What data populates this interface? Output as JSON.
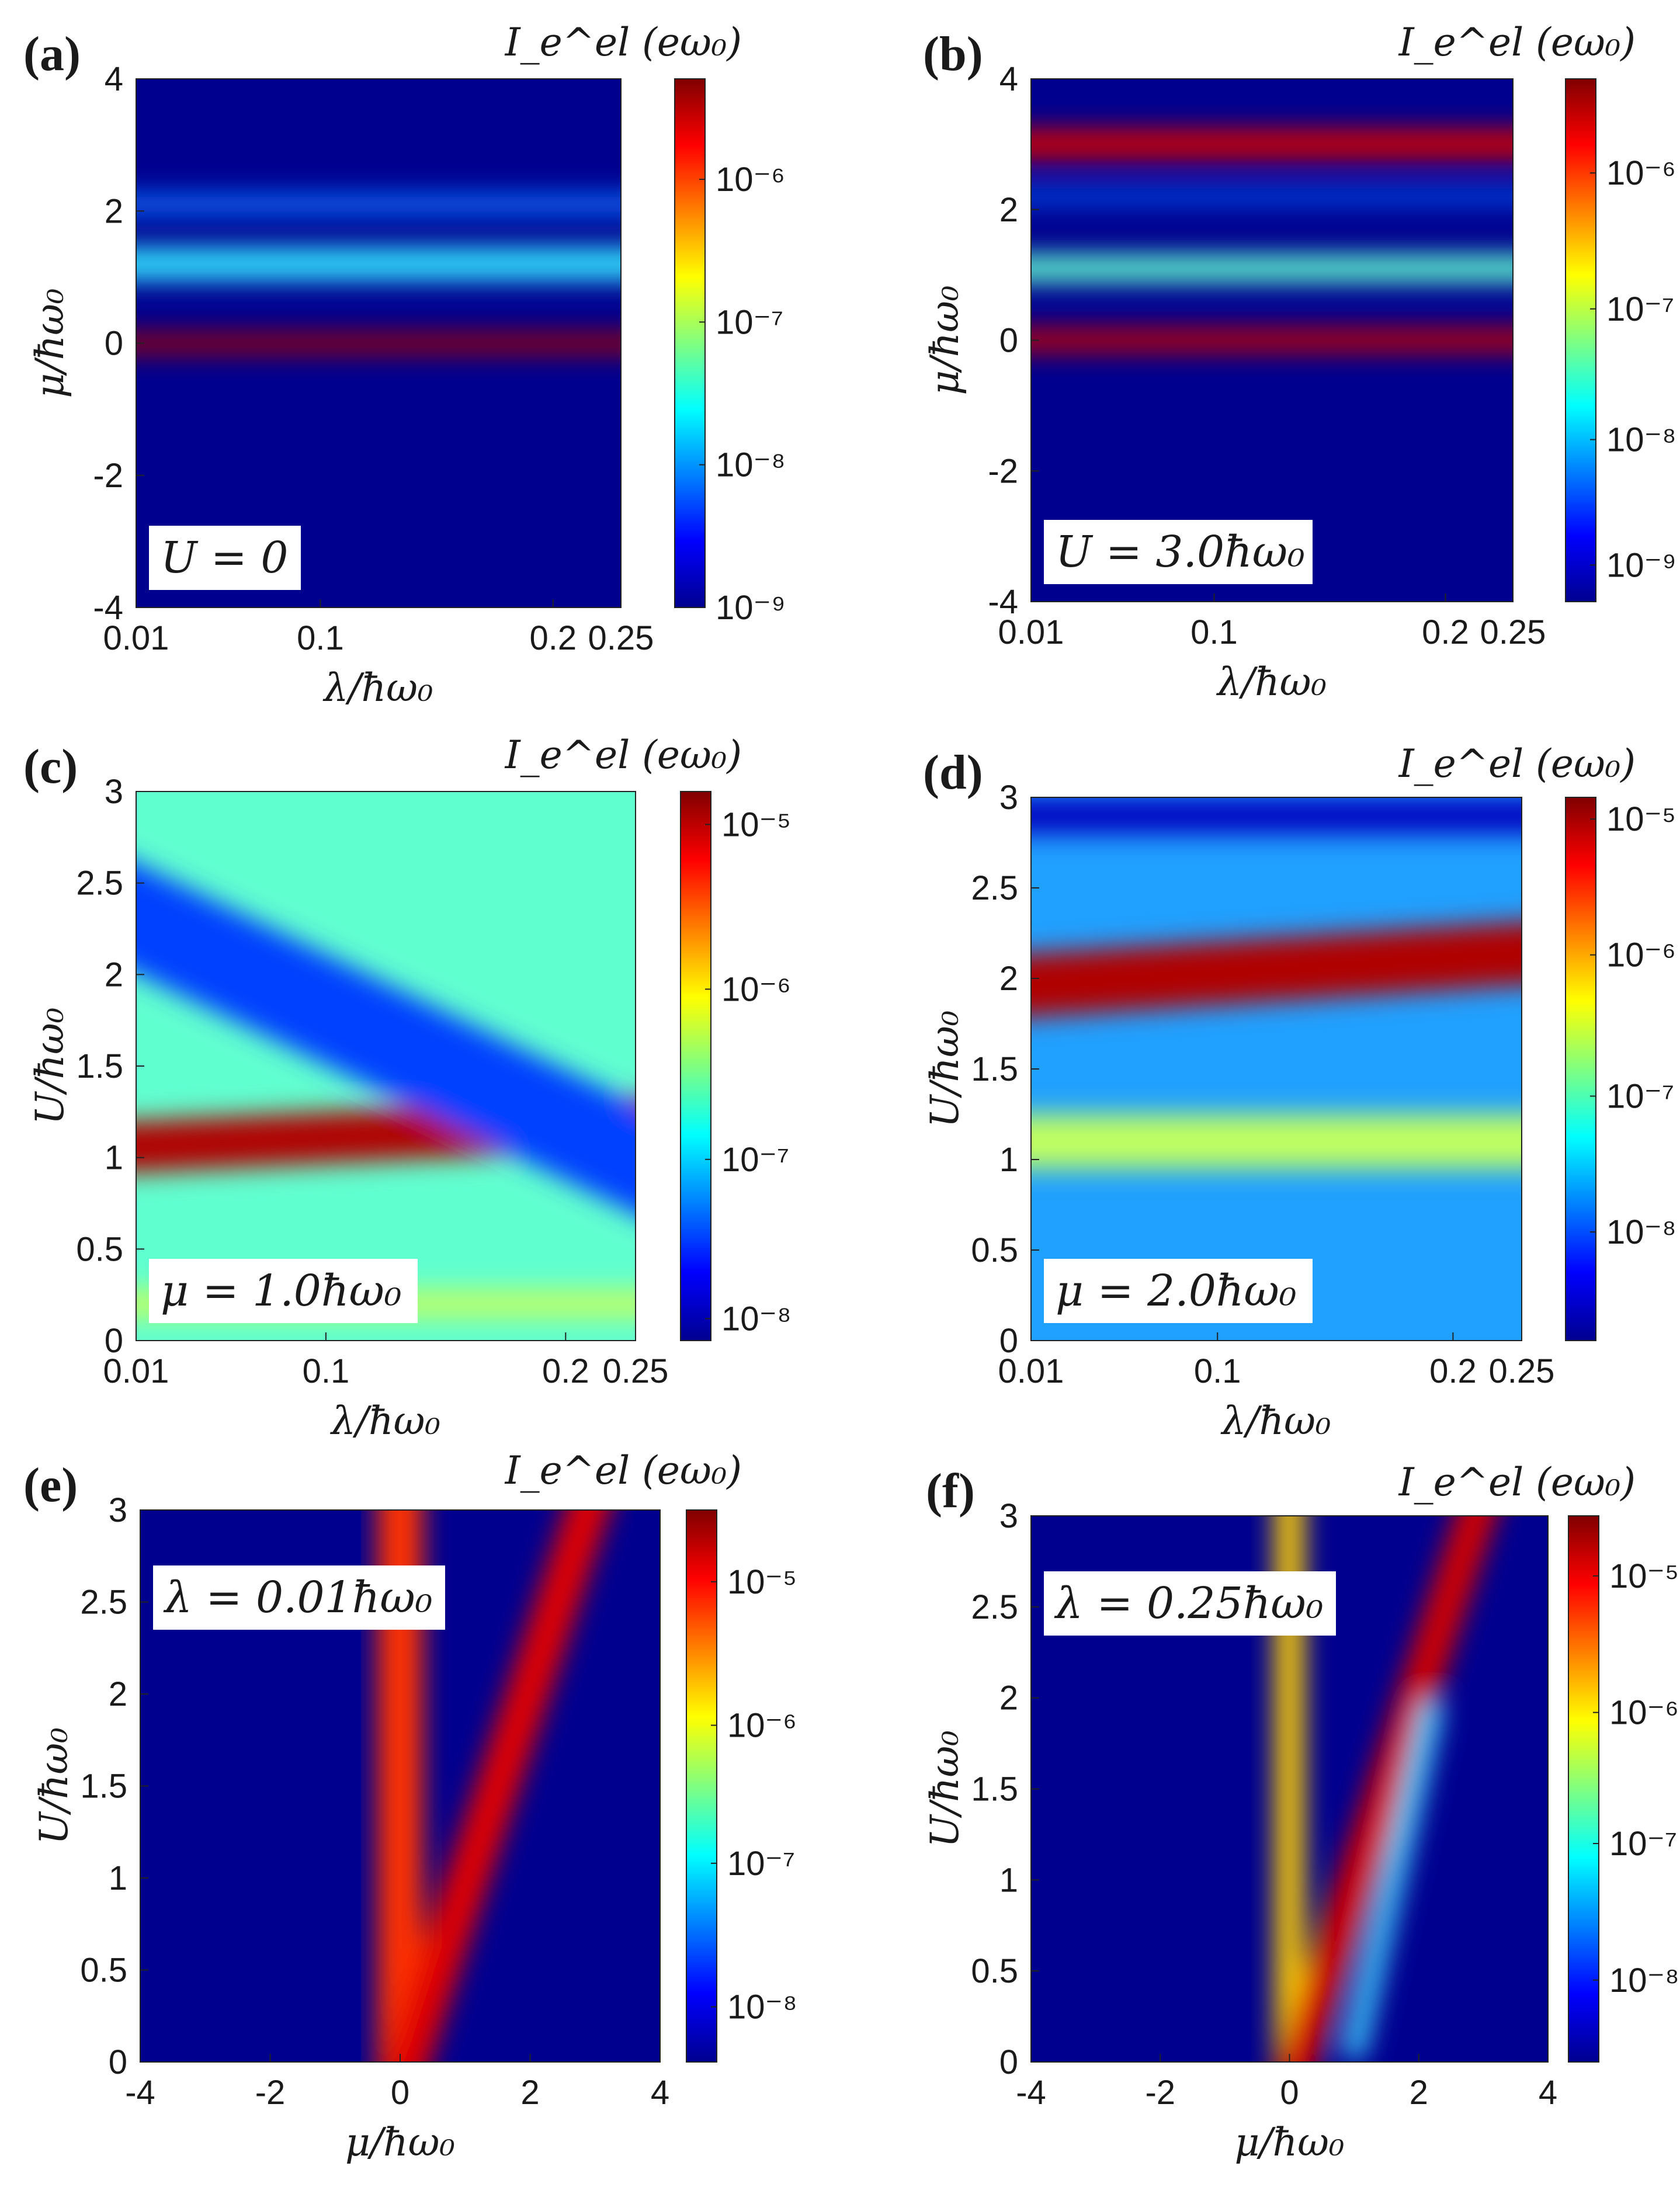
{
  "figure": {
    "colorbar_gradient": [
      "#00008f",
      "#0000ff",
      "#0080ff",
      "#00ffff",
      "#80ff80",
      "#ffff00",
      "#ff8000",
      "#ff0000",
      "#800000"
    ]
  },
  "chart_data": [
    {
      "type": "heatmap",
      "panel": "(a)",
      "colorbar_label": "I_e^el (eω₀)",
      "colorbar_ticks": [
        "10⁻⁶",
        "10⁻⁷",
        "10⁻⁸",
        "10⁻⁹"
      ],
      "colorbar_tick_positions": [
        0.81,
        0.54,
        0.27,
        0.0
      ],
      "xlabel": "λ/ħω₀",
      "ylabel": "μ/ħω₀",
      "xticks": [
        "0.01",
        "0.1",
        "0.2",
        "0.25"
      ],
      "xtick_positions": [
        0.0,
        0.38,
        0.86,
        1.0
      ],
      "yticks": [
        "4",
        "2",
        "0",
        "-2",
        "-4"
      ],
      "ytick_positions": [
        1.0,
        0.75,
        0.5,
        0.25,
        0.0
      ],
      "xlim": [
        0.01,
        0.25
      ],
      "ylim": [
        -4,
        4
      ],
      "annotation": "U = 0",
      "annotation_pos": "bottom-left",
      "dominant_color": "#00008f",
      "bands": [
        {
          "center": 0.0,
          "width": 0.3,
          "color": "#a00000",
          "slope": 0.0
        },
        {
          "center": 1.2,
          "width": 0.5,
          "color": "#30e0ff",
          "slope": 0.0
        },
        {
          "center": 2.1,
          "width": 0.3,
          "color": "#1070ff",
          "slope": 0.0
        }
      ]
    },
    {
      "type": "heatmap",
      "panel": "(b)",
      "colorbar_label": "I_e^el (eω₀)",
      "colorbar_ticks": [
        "10⁻⁶",
        "10⁻⁷",
        "10⁻⁸",
        "10⁻⁹"
      ],
      "colorbar_tick_positions": [
        0.82,
        0.56,
        0.31,
        0.07
      ],
      "xlabel": "λ/ħω₀",
      "ylabel": "μ/ħω₀",
      "xticks": [
        "0.01",
        "0.1",
        "0.2",
        "0.25"
      ],
      "xtick_positions": [
        0.0,
        0.38,
        0.86,
        1.0
      ],
      "yticks": [
        "4",
        "2",
        "0",
        "-2",
        "-4"
      ],
      "ytick_positions": [
        1.0,
        0.75,
        0.5,
        0.25,
        0.0
      ],
      "xlim": [
        0.01,
        0.25
      ],
      "ylim": [
        -4,
        4
      ],
      "annotation": "U = 3.0ħω₀",
      "annotation_pos": "bottom-left",
      "dominant_color": "#00008f",
      "bands": [
        {
          "center": 3.0,
          "width": 0.45,
          "color": "#d00000",
          "slope": 0.0
        },
        {
          "center": 1.1,
          "width": 0.4,
          "color": "#60ffd0",
          "slope": 0.0
        },
        {
          "center": 0.0,
          "width": 0.35,
          "color": "#c00000",
          "slope": 0.0
        },
        {
          "center": 2.2,
          "width": 0.2,
          "color": "#0060ff",
          "slope": 0.0
        }
      ]
    },
    {
      "type": "heatmap",
      "panel": "(c)",
      "colorbar_label": "I_e^el (eω₀)",
      "colorbar_ticks": [
        "10⁻⁵",
        "10⁻⁶",
        "10⁻⁷",
        "10⁻⁸"
      ],
      "colorbar_tick_positions": [
        0.94,
        0.64,
        0.33,
        0.04
      ],
      "xlabel": "λ/ħω₀",
      "ylabel": "U/ħω₀",
      "xticks": [
        "0.01",
        "0.1",
        "0.2",
        "0.25"
      ],
      "xtick_positions": [
        0.0,
        0.38,
        0.86,
        1.0
      ],
      "yticks": [
        "3",
        "2.5",
        "2",
        "1.5",
        "1",
        "0.5",
        "0"
      ],
      "ytick_positions": [
        1.0,
        0.8333,
        0.6667,
        0.5,
        0.3333,
        0.1667,
        0.0
      ],
      "xlim": [
        0.01,
        0.25
      ],
      "ylim": [
        0,
        3
      ],
      "annotation": "μ = 1.0ħω₀",
      "annotation_pos": "bottom-left",
      "dominant_color": "#60ffd0",
      "bands": [
        {
          "center": 1.05,
          "width": 0.28,
          "color": "#b00000",
          "slope": 0.15
        },
        {
          "center": 2.4,
          "width": 0.6,
          "color": "#0040ff",
          "slope": -1.5
        },
        {
          "center": 0.2,
          "width": 0.15,
          "color": "#c0ff60",
          "slope": 0.0
        }
      ]
    },
    {
      "type": "heatmap",
      "panel": "(d)",
      "colorbar_label": "I_e^el (eω₀)",
      "colorbar_ticks": [
        "10⁻⁵",
        "10⁻⁶",
        "10⁻⁷",
        "10⁻⁸"
      ],
      "colorbar_tick_positions": [
        0.96,
        0.71,
        0.45,
        0.2
      ],
      "xlabel": "λ/ħω₀",
      "ylabel": "U/ħω₀",
      "xticks": [
        "0.01",
        "0.1",
        "0.2",
        "0.25"
      ],
      "xtick_positions": [
        0.0,
        0.38,
        0.86,
        1.0
      ],
      "yticks": [
        "3",
        "2.5",
        "2",
        "1.5",
        "1",
        "0.5",
        "0"
      ],
      "ytick_positions": [
        1.0,
        0.8333,
        0.6667,
        0.5,
        0.3333,
        0.1667,
        0.0
      ],
      "xlim": [
        0.01,
        0.25
      ],
      "ylim": [
        0,
        3
      ],
      "annotation": "μ = 2.0ħω₀",
      "annotation_pos": "bottom-left",
      "dominant_color": "#20a0ff",
      "bands": [
        {
          "center": 1.95,
          "width": 0.35,
          "color": "#b00000",
          "slope": 0.2
        },
        {
          "center": 1.1,
          "width": 0.3,
          "color": "#c0ff60",
          "slope": 0.0
        },
        {
          "center": 2.9,
          "width": 0.2,
          "color": "#0000c0",
          "slope": 0.0
        }
      ]
    },
    {
      "type": "heatmap",
      "panel": "(e)",
      "colorbar_label": "I_e^el (eω₀)",
      "colorbar_ticks": [
        "10⁻⁵",
        "10⁻⁶",
        "10⁻⁷",
        "10⁻⁸"
      ],
      "colorbar_tick_positions": [
        0.87,
        0.61,
        0.36,
        0.1
      ],
      "xlabel": "μ/ħω₀",
      "ylabel": "U/ħω₀",
      "xticks": [
        "-4",
        "-2",
        "0",
        "2",
        "4"
      ],
      "xtick_positions": [
        0.0,
        0.25,
        0.5,
        0.75,
        1.0
      ],
      "yticks": [
        "3",
        "2.5",
        "2",
        "1.5",
        "1",
        "0.5",
        "0"
      ],
      "ytick_positions": [
        1.0,
        0.8333,
        0.6667,
        0.5,
        0.3333,
        0.1667,
        0.0
      ],
      "xlim": [
        -4,
        4
      ],
      "ylim": [
        0,
        3
      ],
      "annotation": "λ = 0.01ħω₀",
      "annotation_pos": "top-left",
      "dominant_color": "#00008f",
      "lines": [
        {
          "from": [
            0,
            0
          ],
          "to": [
            0,
            3
          ],
          "width": 0.7,
          "color": "#ff3000"
        },
        {
          "from": [
            0,
            0
          ],
          "to": [
            3,
            3
          ],
          "width": 0.65,
          "color": "#e00000"
        }
      ]
    },
    {
      "type": "heatmap",
      "panel": "(f)",
      "colorbar_label": "I_e^el (eω₀)",
      "colorbar_ticks": [
        "10⁻⁵",
        "10⁻⁶",
        "10⁻⁷",
        "10⁻⁸"
      ],
      "colorbar_tick_positions": [
        0.89,
        0.64,
        0.4,
        0.15
      ],
      "xlabel": "μ/ħω₀",
      "ylabel": "U/ħω₀",
      "xticks": [
        "-4",
        "-2",
        "0",
        "2",
        "4"
      ],
      "xtick_positions": [
        0.0,
        0.25,
        0.5,
        0.75,
        1.0
      ],
      "yticks": [
        "3",
        "2.5",
        "2",
        "1.5",
        "1",
        "0.5",
        "0"
      ],
      "ytick_positions": [
        1.0,
        0.8333,
        0.6667,
        0.5,
        0.3333,
        0.1667,
        0.0
      ],
      "xlim": [
        -4,
        4
      ],
      "ylim": [
        0,
        3
      ],
      "annotation": "λ = 0.25ħω₀",
      "annotation_pos": "top-left",
      "dominant_color": "#00008f",
      "lines": [
        {
          "from": [
            0,
            0
          ],
          "to": [
            0,
            3
          ],
          "width": 0.45,
          "color": "#ffd000"
        },
        {
          "from": [
            0,
            0
          ],
          "to": [
            3,
            3
          ],
          "width": 0.6,
          "color": "#d00000"
        },
        {
          "from": [
            1,
            0.2
          ],
          "to": [
            2.2,
            1.8
          ],
          "width": 0.35,
          "color": "#40d0ff"
        }
      ]
    }
  ]
}
